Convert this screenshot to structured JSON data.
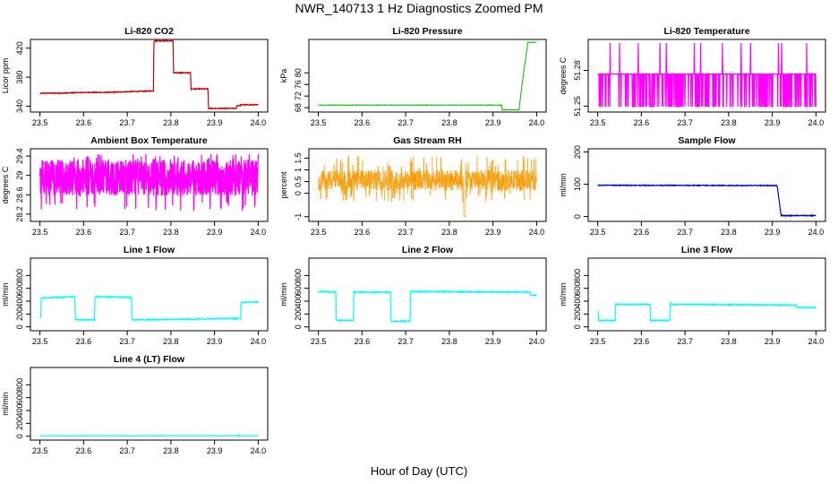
{
  "title": "NWR_140713  1 Hz Diagnostics Zoomed PM",
  "xlabel": "Hour of Day (UTC)",
  "chart_data": [
    {
      "type": "line",
      "title": "Li-820 CO2",
      "ylabel": "Licor ppm",
      "color": "#cc0000",
      "xlim": [
        23.5,
        24.0
      ],
      "ylim": [
        332,
        432
      ],
      "xticks": [
        "23.5",
        "23.6",
        "23.7",
        "23.8",
        "23.9",
        "24.0"
      ],
      "yticks": [
        340,
        380,
        420
      ],
      "noise": 0.6,
      "series": [
        {
          "x": [
            23.5,
            23.505,
            23.51,
            23.55,
            23.6,
            23.65,
            23.7,
            23.76,
            23.761,
            23.805,
            23.806,
            23.845,
            23.846,
            23.885,
            23.886,
            23.93,
            23.95,
            23.951,
            23.96,
            23.961,
            24.0
          ],
          "y": [
            357,
            358,
            358,
            358,
            359,
            359,
            360,
            361,
            430,
            430,
            386,
            386,
            364,
            364,
            337,
            337,
            337,
            341,
            341,
            342,
            342
          ]
        }
      ]
    },
    {
      "type": "line",
      "title": "Li-820 Pressure",
      "ylabel": "kPa",
      "color": "#00bb00",
      "xlim": [
        23.5,
        24.0
      ],
      "ylim": [
        66.5,
        91.5
      ],
      "xticks": [
        "23.5",
        "23.6",
        "23.7",
        "23.8",
        "23.9",
        "24.0"
      ],
      "yticks": [
        68,
        72,
        76,
        80
      ],
      "noise": 0.08,
      "series": [
        {
          "x": [
            23.5,
            23.92,
            23.921,
            23.96,
            23.961,
            23.97,
            23.98,
            23.99,
            24.0
          ],
          "y": [
            68.9,
            68.9,
            67.3,
            67.3,
            69,
            80,
            90.5,
            90.5,
            90.5
          ]
        }
      ]
    },
    {
      "type": "line",
      "title": "Li-820 Temperature",
      "ylabel": "degrees C",
      "color": "#ff00ff",
      "xlim": [
        23.5,
        24.0
      ],
      "ylim": [
        51.245,
        51.306
      ],
      "xticks": [
        "23.5",
        "23.6",
        "23.7",
        "23.8",
        "23.9",
        "24.0"
      ],
      "yticks": [
        51.25,
        51.28
      ],
      "noise": 0,
      "series": [
        {
          "x": [
            23.5,
            24.0
          ],
          "y": [
            51.277,
            51.277
          ]
        }
      ]
    },
    {
      "type": "line",
      "title": "Ambient Box Temperature",
      "ylabel": "degrees C",
      "color": "#ff00ff",
      "xlim": [
        23.5,
        24.0
      ],
      "ylim": [
        28.05,
        29.55
      ],
      "xticks": [
        "23.5",
        "23.6",
        "23.7",
        "23.8",
        "23.9",
        "24.0"
      ],
      "yticks": [
        28.2,
        28.6,
        29.0,
        29.4
      ],
      "noise": 0,
      "series": [
        {
          "x": [
            23.5,
            24.0
          ],
          "y": [
            28.95,
            28.95
          ]
        }
      ]
    },
    {
      "type": "line",
      "title": "Gas Stream RH",
      "ylabel": "percent",
      "color": "#ff9900",
      "xlim": [
        23.5,
        24.0
      ],
      "ylim": [
        -1.2,
        1.9
      ],
      "xticks": [
        "23.5",
        "23.6",
        "23.7",
        "23.8",
        "23.9",
        "24.0"
      ],
      "yticks": [
        -1.0,
        0.0,
        0.5,
        1.0,
        1.5
      ],
      "noise": 0,
      "series": [
        {
          "x": [
            23.5,
            24.0
          ],
          "y": [
            0.5,
            0.5
          ]
        }
      ]
    },
    {
      "type": "line",
      "title": "Sample Flow",
      "ylabel": "ml/min",
      "color": "#0000cc",
      "xlim": [
        23.5,
        24.0
      ],
      "ylim": [
        -15,
        210
      ],
      "xticks": [
        "23.5",
        "23.6",
        "23.7",
        "23.8",
        "23.9",
        "24.0"
      ],
      "yticks": [
        0,
        100,
        200
      ],
      "noise": 1.2,
      "series": [
        {
          "x": [
            23.5,
            23.91,
            23.911,
            23.92,
            23.921,
            24.0
          ],
          "y": [
            97,
            96,
            96,
            5,
            3,
            3
          ]
        }
      ]
    },
    {
      "type": "line",
      "title": "Line 1 Flow",
      "ylabel": "ml/min",
      "color": "#00ffff",
      "xlim": [
        23.5,
        24.0
      ],
      "ylim": [
        -60,
        1070
      ],
      "xticks": [
        "23.5",
        "23.6",
        "23.7",
        "23.8",
        "23.9",
        "24.0"
      ],
      "yticks": [
        0,
        200,
        400,
        600,
        800
      ],
      "noise": 8,
      "series": [
        {
          "x": [
            23.5,
            23.502,
            23.503,
            23.58,
            23.581,
            23.625,
            23.626,
            23.71,
            23.711,
            23.96,
            23.961,
            24.0
          ],
          "y": [
            150,
            150,
            450,
            470,
            110,
            110,
            470,
            460,
            110,
            130,
            380,
            390
          ]
        }
      ]
    },
    {
      "type": "line",
      "title": "Line 2 Flow",
      "ylabel": "ml/min",
      "color": "#00ffff",
      "xlim": [
        23.5,
        24.0
      ],
      "ylim": [
        -60,
        1070
      ],
      "xticks": [
        "23.5",
        "23.6",
        "23.7",
        "23.8",
        "23.9",
        "24.0"
      ],
      "yticks": [
        0,
        200,
        400,
        600,
        800
      ],
      "noise": 8,
      "series": [
        {
          "x": [
            23.5,
            23.54,
            23.541,
            23.58,
            23.581,
            23.665,
            23.666,
            23.71,
            23.711,
            23.985,
            23.986,
            24.0
          ],
          "y": [
            550,
            540,
            100,
            100,
            540,
            540,
            90,
            90,
            550,
            540,
            490,
            490
          ]
        }
      ]
    },
    {
      "type": "line",
      "title": "Line 3 Flow",
      "ylabel": "ml/min",
      "color": "#00ffff",
      "xlim": [
        23.5,
        24.0
      ],
      "ylim": [
        -60,
        1070
      ],
      "xticks": [
        "23.5",
        "23.6",
        "23.7",
        "23.8",
        "23.9",
        "24.0"
      ],
      "yticks": [
        0,
        200,
        400,
        600,
        800
      ],
      "noise": 8,
      "series": [
        {
          "x": [
            23.5,
            23.501,
            23.502,
            23.54,
            23.541,
            23.542,
            23.62,
            23.621,
            23.665,
            23.666,
            23.667,
            23.955,
            23.956,
            24.0
          ],
          "y": [
            250,
            250,
            100,
            100,
            400,
            350,
            350,
            100,
            100,
            420,
            350,
            340,
            300,
            300
          ]
        }
      ]
    },
    {
      "type": "line",
      "title": "Line 4 (LT) Flow",
      "ylabel": "ml/min",
      "color": "#00ffff",
      "xlim": [
        23.5,
        24.0
      ],
      "ylim": [
        -60,
        1070
      ],
      "xticks": [
        "23.5",
        "23.6",
        "23.7",
        "23.8",
        "23.9",
        "24.0"
      ],
      "yticks": [
        0,
        200,
        400,
        600,
        800
      ],
      "noise": 2,
      "series": [
        {
          "x": [
            23.5,
            23.955,
            23.956,
            23.957,
            24.0
          ],
          "y": [
            8,
            8,
            35,
            8,
            8
          ]
        }
      ]
    }
  ]
}
